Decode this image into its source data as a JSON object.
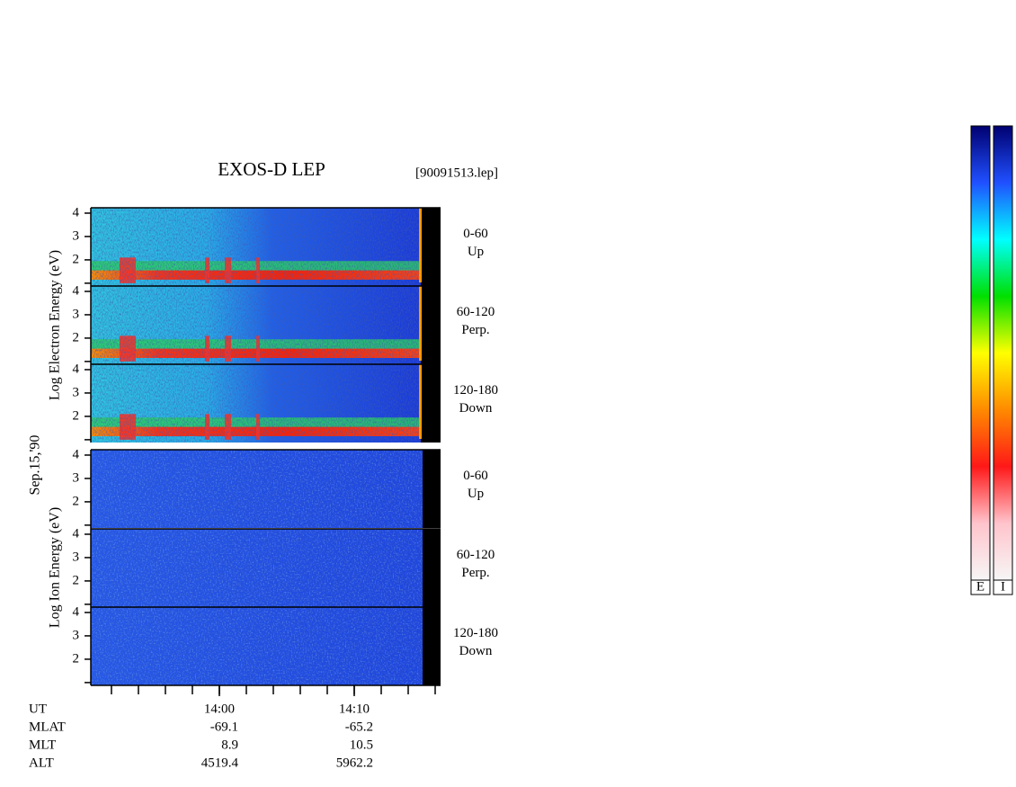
{
  "chart_data": {
    "type": "spectrogram",
    "title": "EXOS-D LEP",
    "subtitle": "[90091513.lep]",
    "date_label": "Sep.15,'90",
    "groups": [
      {
        "ylabel": "Log Electron Energy (eV)",
        "species": "electron",
        "panels": [
          {
            "label": [
              "0-60",
              "Up"
            ]
          },
          {
            "label": [
              "60-120",
              "Perp."
            ]
          },
          {
            "label": [
              "120-180",
              "Down"
            ]
          }
        ]
      },
      {
        "ylabel": "Log Ion Energy (eV)",
        "species": "ion",
        "panels": [
          {
            "label": [
              "0-60",
              "Up"
            ]
          },
          {
            "label": [
              "60-120",
              "Perp."
            ]
          },
          {
            "label": [
              "120-180",
              "Down"
            ]
          }
        ]
      }
    ],
    "ylim": [
      0.88,
      4.23
    ],
    "yticks": [
      {
        "value": 1,
        "label": null
      },
      2,
      3,
      4
    ],
    "xlim": [
      830.47,
      856.4
    ],
    "xticks": [
      {
        "value": 840,
        "label": "14:00"
      },
      {
        "value": 850,
        "label": "14:10"
      }
    ],
    "xminorticks": [
      832,
      834,
      836,
      838,
      840,
      842,
      844,
      846,
      848,
      850,
      852,
      854,
      856
    ],
    "ephemeris": {
      "rows": [
        "UT",
        "MLAT",
        "MLT",
        "ALT"
      ],
      "columns": [
        [
          "-69.1",
          "8.9",
          "4519.4"
        ],
        [
          "-65.2",
          "10.5",
          "5962.2"
        ]
      ]
    },
    "colorbar_labels": [
      "E",
      "I"
    ],
    "colorscale": [
      "#f6f6f6",
      "#ffc4cc",
      "#ff1818",
      "#ff8a00",
      "#ffff00",
      "#00e000",
      "#00ffff",
      "#2050ff",
      "#000070"
    ]
  }
}
